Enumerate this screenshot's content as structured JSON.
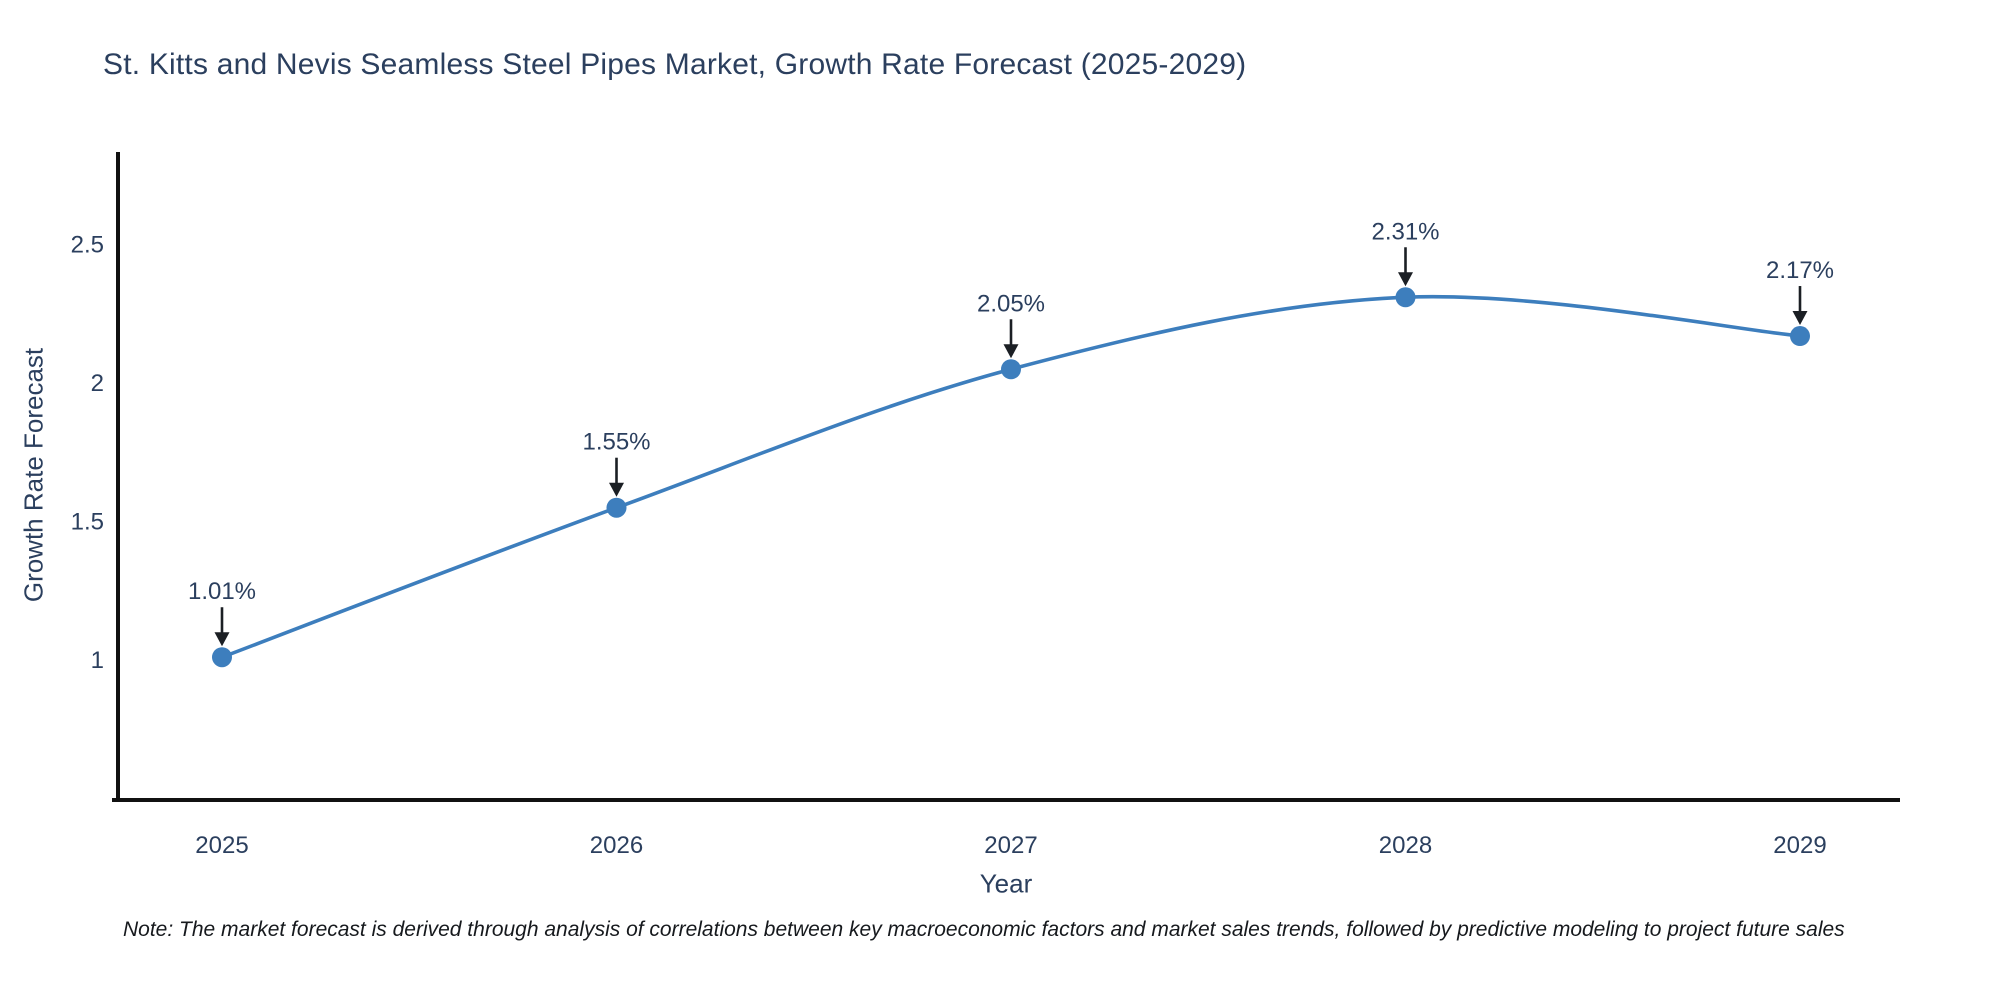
{
  "note": {
    "text": "Note: The market forecast is derived through analysis of correlations between key macroeconomic factors and market sales trends, followed by predictive modeling to project future sales"
  },
  "colors": {
    "background": "#ffffff",
    "text": "#2b3f5e",
    "axis_line": "#111111",
    "note_text": "#16191d"
  },
  "chart_data": {
    "type": "line",
    "title": "St. Kitts and Nevis Seamless Steel Pipes Market, Growth Rate Forecast (2025-2029)",
    "xlabel": "Year",
    "ylabel": "Growth Rate Forecast",
    "x": [
      2025,
      2026,
      2027,
      2028,
      2029
    ],
    "series": [
      {
        "name": "Growth Rate Forecast",
        "values": [
          1.01,
          1.55,
          2.05,
          2.31,
          2.17
        ]
      }
    ],
    "point_labels": [
      "1.01%",
      "1.55%",
      "2.05%",
      "2.31%",
      "2.17%"
    ],
    "y_ticks": [
      1,
      1.5,
      2,
      2.5
    ],
    "ylim": [
      0.49,
      2.83
    ],
    "grid": false,
    "legend": "none",
    "line_shape": "spline",
    "line_color": "#3d7ebd",
    "marker_color": "#3d7ebd",
    "annotation_arrow_color": "#1b1f24"
  }
}
